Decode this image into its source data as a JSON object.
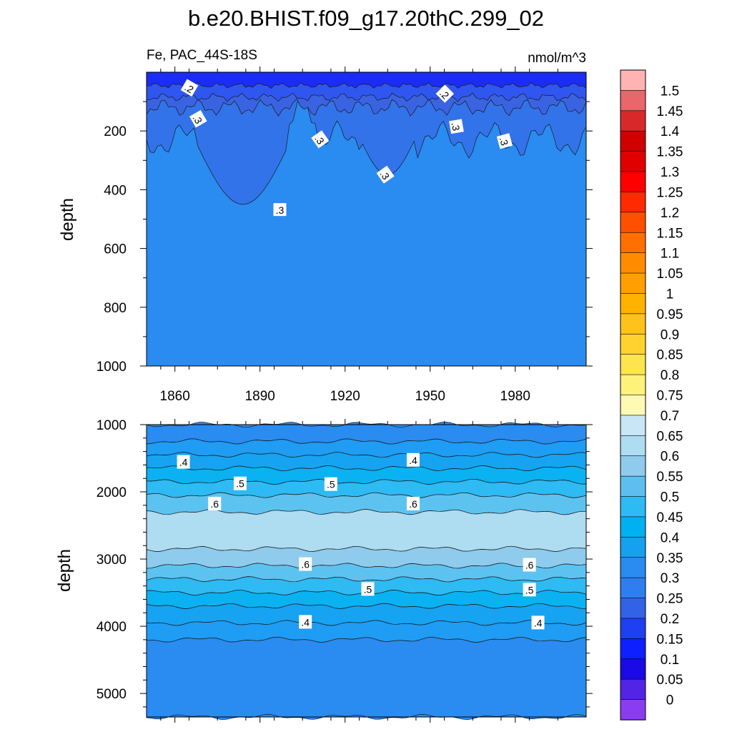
{
  "title": "b.e20.BHIST.f09_g17.20thC.299_02",
  "chart_data": [
    {
      "type": "heatmap",
      "panel": "upper",
      "subtitle_left": "Fe, PAC_44S-18S",
      "subtitle_right": "nmol/m^3",
      "ylabel": "depth",
      "xlabel": "",
      "xlim": [
        1850,
        2005
      ],
      "ylim": [
        1000,
        0
      ],
      "x_ticks": [
        "1860",
        "1890",
        "1920",
        "1950",
        "1980"
      ],
      "y_ticks": [
        "200",
        "400",
        "600",
        "800",
        "1000"
      ],
      "contour_labels": [
        {
          "text": ".2",
          "x": 1865,
          "depth": 55,
          "angle": 30
        },
        {
          "text": ".3",
          "x": 1868,
          "depth": 160,
          "angle": 60
        },
        {
          "text": ".3",
          "x": 1911,
          "depth": 230,
          "angle": 55
        },
        {
          "text": ".3",
          "x": 1897,
          "depth": 470,
          "angle": 0
        },
        {
          "text": ".3",
          "x": 1934,
          "depth": 350,
          "angle": 55
        },
        {
          "text": ".2",
          "x": 1955,
          "depth": 75,
          "angle": 45
        },
        {
          "text": ".3",
          "x": 1959,
          "depth": 185,
          "angle": 80
        },
        {
          "text": ".3",
          "x": 1976,
          "depth": 235,
          "angle": 75
        }
      ],
      "description": "Fe concentration contours: <0.15 near surface, 0.2-0.3 in upper 300-450 m, ~0.3-0.35 below"
    },
    {
      "type": "heatmap",
      "panel": "lower",
      "ylabel": "depth",
      "xlabel": "",
      "xlim": [
        1850,
        2005
      ],
      "ylim": [
        5350,
        1000
      ],
      "x_ticks": [
        "1860",
        "1890",
        "1920",
        "1950",
        "1980"
      ],
      "y_ticks": [
        "1000",
        "2000",
        "3000",
        "4000",
        "5000"
      ],
      "contour_labels": [
        {
          "text": ".4",
          "x": 1863,
          "depth": 1560
        },
        {
          "text": ".4",
          "x": 1944,
          "depth": 1530
        },
        {
          "text": ".5",
          "x": 1883,
          "depth": 1880
        },
        {
          "text": ".5",
          "x": 1915,
          "depth": 1890
        },
        {
          "text": ".6",
          "x": 1874,
          "depth": 2180
        },
        {
          "text": ".6",
          "x": 1944,
          "depth": 2180
        },
        {
          "text": ".6",
          "x": 1906,
          "depth": 3080
        },
        {
          "text": ".6",
          "x": 1985,
          "depth": 3090
        },
        {
          "text": ".5",
          "x": 1928,
          "depth": 3450
        },
        {
          "text": ".5",
          "x": 1985,
          "depth": 3460
        },
        {
          "text": ".4",
          "x": 1906,
          "depth": 3940
        },
        {
          "text": ".4",
          "x": 1988,
          "depth": 3950
        }
      ],
      "levels_by_depth": [
        {
          "depth_top": 1000,
          "depth_bottom": 1300,
          "value_band": "0.35-0.4"
        },
        {
          "depth_top": 1300,
          "depth_bottom": 1850,
          "value_band": "0.4-0.5"
        },
        {
          "depth_top": 1850,
          "depth_bottom": 2300,
          "value_band": "0.5-0.65"
        },
        {
          "depth_top": 2300,
          "depth_bottom": 2950,
          "value_band": "0.65-0.7"
        },
        {
          "depth_top": 2950,
          "depth_bottom": 3450,
          "value_band": "0.55-0.65"
        },
        {
          "depth_top": 3450,
          "depth_bottom": 4200,
          "value_band": "0.4-0.5"
        },
        {
          "depth_top": 4200,
          "depth_bottom": 5350,
          "value_band": "0.35-0.4"
        }
      ]
    }
  ],
  "colorbar": {
    "labels": [
      "1.5",
      "1.45",
      "1.4",
      "1.35",
      "1.3",
      "1.25",
      "1.2",
      "1.15",
      "1.1",
      "1.05",
      "1",
      "0.95",
      "0.9",
      "0.85",
      "0.8",
      "0.75",
      "0.7",
      "0.65",
      "0.6",
      "0.55",
      "0.5",
      "0.45",
      "0.4",
      "0.35",
      "0.3",
      "0.25",
      "0.2",
      "0.15",
      "0.1",
      "0.05",
      "0"
    ],
    "colors": [
      "#ffb3b3",
      "#e8676b",
      "#d7292a",
      "#d00000",
      "#e10000",
      "#ff0000",
      "#ff2a00",
      "#ff5000",
      "#ff7000",
      "#ff8c00",
      "#ffa000",
      "#ffb300",
      "#ffc21a",
      "#ffd230",
      "#ffe54d",
      "#fff27a",
      "#fffab3",
      "#c8e6f5",
      "#aedcf0",
      "#8fcbec",
      "#5cbff0",
      "#2ebaf3",
      "#00b0f0",
      "#16a0f0",
      "#2a8bf0",
      "#2f7ef0",
      "#3262e6",
      "#1f40f0",
      "#0e20ff",
      "#1a0ae6",
      "#5224e6",
      "#8a3cf0"
    ]
  }
}
